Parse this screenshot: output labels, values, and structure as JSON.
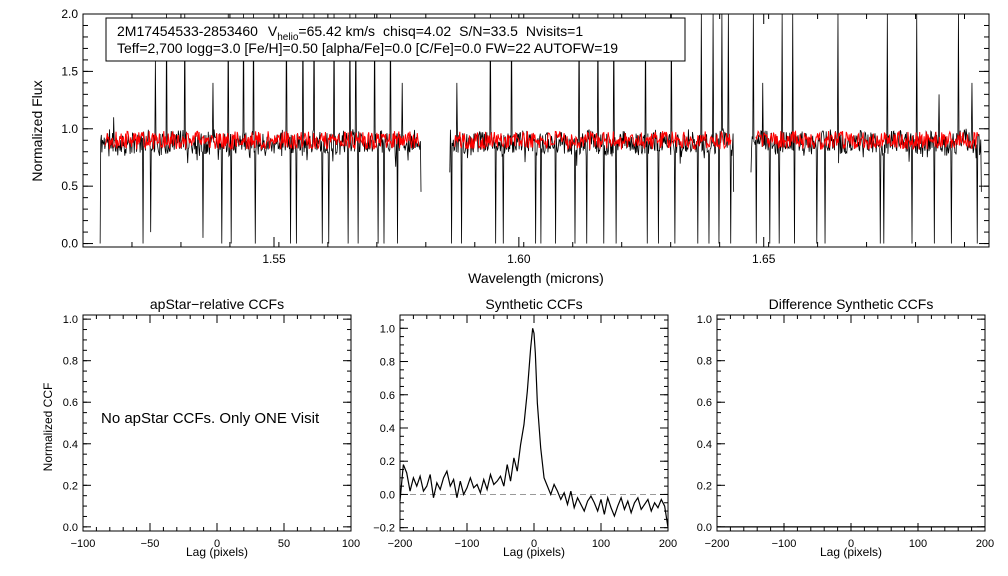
{
  "chart_data": [
    {
      "type": "line",
      "id": "spectrum",
      "star_id": "2M17454533-2853460",
      "vhelio_label": "V",
      "vhelio_sub": "helio",
      "vhelio_value": "=65.42 km/s",
      "chisq": "chisq=4.02",
      "snr": "S/N=33.5",
      "nvisits": "Nvisits=1",
      "params_line": "Teff=2,700 logg=3.0 [Fe/H]=0.50 [alpha/Fe]=0.0 [C/Fe]=0.0 FW=22 AUTOFW=19",
      "xlabel": "Wavelength (microns)",
      "ylabel": "Normalized Flux",
      "xlim": [
        1.511,
        1.696
      ],
      "ylim": [
        -0.03,
        2.0
      ],
      "xticks": [
        1.55,
        1.6,
        1.65
      ],
      "xtick_labels": [
        "1.55",
        "1.60",
        "1.65"
      ],
      "yticks": [
        0.0,
        0.5,
        1.0,
        1.5,
        2.0
      ],
      "ytick_labels": [
        "0.0",
        "0.5",
        "1.0",
        "1.5",
        "2.0"
      ],
      "chips": [
        [
          1.5145,
          1.5801
        ],
        [
          1.5859,
          1.6439
        ],
        [
          1.6474,
          1.6945
        ]
      ],
      "continuum_level": 0.88,
      "noise_amplitude": 0.1,
      "series": [
        {
          "name": "observed",
          "color": "#000000"
        },
        {
          "name": "synthetic model",
          "color": "#ff0000"
        }
      ],
      "spikes": [
        {
          "x": 1.5172,
          "y": 1.1
        },
        {
          "x": 1.5258,
          "y": 1.6
        },
        {
          "x": 1.5281,
          "y": 2.0
        },
        {
          "x": 1.5318,
          "y": 2.0
        },
        {
          "x": 1.5375,
          "y": 1.4
        },
        {
          "x": 1.5407,
          "y": 2.0
        },
        {
          "x": 1.5438,
          "y": 2.0
        },
        {
          "x": 1.5458,
          "y": 2.0
        },
        {
          "x": 1.5525,
          "y": 2.0
        },
        {
          "x": 1.5559,
          "y": 2.0
        },
        {
          "x": 1.5582,
          "y": 2.0
        },
        {
          "x": 1.5622,
          "y": 2.0
        },
        {
          "x": 1.5655,
          "y": 2.0
        },
        {
          "x": 1.5667,
          "y": 2.0
        },
        {
          "x": 1.5705,
          "y": 2.0
        },
        {
          "x": 1.5738,
          "y": 2.0
        },
        {
          "x": 1.5762,
          "y": 1.4
        },
        {
          "x": 1.5873,
          "y": 1.4
        },
        {
          "x": 1.5942,
          "y": 2.0
        },
        {
          "x": 1.5985,
          "y": 2.0
        },
        {
          "x": 1.6123,
          "y": 2.0
        },
        {
          "x": 1.6161,
          "y": 2.0
        },
        {
          "x": 1.6194,
          "y": 2.0
        },
        {
          "x": 1.6258,
          "y": 2.0
        },
        {
          "x": 1.6311,
          "y": 2.0
        },
        {
          "x": 1.6372,
          "y": 2.0
        },
        {
          "x": 1.6396,
          "y": 2.0
        },
        {
          "x": 1.6415,
          "y": 2.0
        },
        {
          "x": 1.6428,
          "y": 2.0
        },
        {
          "x": 1.6479,
          "y": 2.0
        },
        {
          "x": 1.6498,
          "y": 1.4
        },
        {
          "x": 1.6538,
          "y": 2.0
        },
        {
          "x": 1.6559,
          "y": 2.0
        },
        {
          "x": 1.6652,
          "y": 2.0
        },
        {
          "x": 1.6752,
          "y": 2.0
        },
        {
          "x": 1.6812,
          "y": 2.0
        },
        {
          "x": 1.6858,
          "y": 1.3
        },
        {
          "x": 1.6898,
          "y": 2.0
        },
        {
          "x": 1.6925,
          "y": 1.4
        }
      ],
      "dips": [
        {
          "x": 1.5145,
          "y": 0.0
        },
        {
          "x": 1.5233,
          "y": 0.0
        },
        {
          "x": 1.5248,
          "y": 0.1
        },
        {
          "x": 1.5355,
          "y": 0.05
        },
        {
          "x": 1.5393,
          "y": 0.0
        },
        {
          "x": 1.5412,
          "y": 0.0
        },
        {
          "x": 1.5462,
          "y": 0.0
        },
        {
          "x": 1.5534,
          "y": 0.0
        },
        {
          "x": 1.5546,
          "y": 0.0
        },
        {
          "x": 1.5598,
          "y": 0.0
        },
        {
          "x": 1.5612,
          "y": 0.0
        },
        {
          "x": 1.5651,
          "y": 0.0
        },
        {
          "x": 1.5672,
          "y": 0.0
        },
        {
          "x": 1.5712,
          "y": 0.0
        },
        {
          "x": 1.5724,
          "y": 0.0
        },
        {
          "x": 1.5752,
          "y": 0.0
        },
        {
          "x": 1.5862,
          "y": 0.0
        },
        {
          "x": 1.5883,
          "y": 0.0
        },
        {
          "x": 1.5953,
          "y": 0.0
        },
        {
          "x": 1.5968,
          "y": 0.0
        },
        {
          "x": 1.6034,
          "y": 0.0
        },
        {
          "x": 1.6045,
          "y": 0.0
        },
        {
          "x": 1.6075,
          "y": 0.0
        },
        {
          "x": 1.6114,
          "y": 0.0
        },
        {
          "x": 1.6138,
          "y": 0.0
        },
        {
          "x": 1.6173,
          "y": 0.0
        },
        {
          "x": 1.6198,
          "y": 0.0
        },
        {
          "x": 1.6262,
          "y": 0.0
        },
        {
          "x": 1.6285,
          "y": 0.0
        },
        {
          "x": 1.6318,
          "y": 0.0
        },
        {
          "x": 1.6365,
          "y": 0.0
        },
        {
          "x": 1.6388,
          "y": 0.0
        },
        {
          "x": 1.6408,
          "y": 0.0
        },
        {
          "x": 1.6432,
          "y": 0.0
        },
        {
          "x": 1.6485,
          "y": 0.0
        },
        {
          "x": 1.6512,
          "y": 0.0
        },
        {
          "x": 1.6531,
          "y": 0.0
        },
        {
          "x": 1.6563,
          "y": 0.0
        },
        {
          "x": 1.6608,
          "y": 0.0
        },
        {
          "x": 1.6625,
          "y": 0.0
        },
        {
          "x": 1.6738,
          "y": 0.0
        },
        {
          "x": 1.6745,
          "y": 0.0
        },
        {
          "x": 1.6803,
          "y": 0.0
        },
        {
          "x": 1.6848,
          "y": 0.0
        },
        {
          "x": 1.6883,
          "y": 0.0
        },
        {
          "x": 1.6936,
          "y": 0.0
        }
      ]
    },
    {
      "type": "line",
      "id": "apstar_ccf",
      "title": "apStar−relative CCFs",
      "xlabel": "Lag (pixels)",
      "ylabel": "Normalized CCF",
      "xlim": [
        -100,
        100
      ],
      "ylim": [
        -0.02,
        1.02
      ],
      "xticks": [
        -100,
        -50,
        0,
        50,
        100
      ],
      "xtick_labels": [
        "−100",
        "−50",
        "0",
        "50",
        "100"
      ],
      "yticks": [
        0.0,
        0.2,
        0.4,
        0.6,
        0.8,
        1.0
      ],
      "ytick_labels": [
        "0.0",
        "0.2",
        "0.4",
        "0.6",
        "0.8",
        "1.0"
      ],
      "annotation": "No apStar CCFs.  Only ONE Visit",
      "series": []
    },
    {
      "type": "line",
      "id": "synthetic_ccf",
      "title": "Synthetic CCFs",
      "xlabel": "Lag (pixels)",
      "xlim": [
        -200,
        200
      ],
      "ylim": [
        -0.22,
        1.08
      ],
      "xticks": [
        -200,
        -100,
        0,
        100,
        200
      ],
      "xtick_labels": [
        "−200",
        "−100",
        "0",
        "100",
        "200"
      ],
      "yticks": [
        -0.2,
        0.0,
        0.2,
        0.4,
        0.6,
        0.8,
        1.0
      ],
      "ytick_labels": [
        "−0.2",
        "0.0",
        "0.2",
        "0.4",
        "0.6",
        "0.8",
        "1.0"
      ],
      "zero_line": 0.0,
      "series": [
        {
          "name": "ccf",
          "x": [
            -200,
            -195,
            -190,
            -185,
            -180,
            -175,
            -170,
            -165,
            -160,
            -155,
            -150,
            -145,
            -140,
            -135,
            -130,
            -125,
            -120,
            -115,
            -110,
            -105,
            -100,
            -95,
            -90,
            -85,
            -80,
            -75,
            -70,
            -65,
            -60,
            -55,
            -50,
            -45,
            -40,
            -35,
            -30,
            -25,
            -20,
            -15,
            -10,
            -5,
            -2,
            0,
            2,
            5,
            10,
            15,
            20,
            25,
            30,
            35,
            40,
            45,
            50,
            55,
            60,
            65,
            70,
            75,
            80,
            85,
            90,
            95,
            100,
            105,
            110,
            115,
            120,
            125,
            130,
            135,
            140,
            145,
            150,
            155,
            160,
            165,
            170,
            175,
            180,
            185,
            190,
            195,
            200
          ],
          "y": [
            -0.04,
            0.18,
            0.13,
            0.02,
            0.1,
            0.05,
            0.11,
            0.02,
            0.05,
            0.12,
            -0.02,
            0.07,
            0.03,
            0.1,
            0.14,
            0.05,
            0.09,
            -0.02,
            0.08,
            0.0,
            0.04,
            0.1,
            0.04,
            0.06,
            0.01,
            0.09,
            0.03,
            0.12,
            0.06,
            0.08,
            0.11,
            0.05,
            0.18,
            0.08,
            0.22,
            0.14,
            0.3,
            0.42,
            0.62,
            0.88,
            1.0,
            0.97,
            0.85,
            0.55,
            0.28,
            0.1,
            0.05,
            0.0,
            0.06,
            0.02,
            -0.03,
            0.01,
            -0.06,
            0.02,
            -0.08,
            -0.02,
            -0.06,
            -0.1,
            -0.04,
            -0.01,
            -0.05,
            -0.1,
            -0.03,
            -0.12,
            -0.02,
            -0.08,
            -0.13,
            -0.07,
            -0.02,
            -0.09,
            -0.04,
            -0.11,
            -0.05,
            -0.02,
            -0.09,
            -0.06,
            -0.03,
            -0.1,
            -0.05,
            -0.08,
            -0.03,
            -0.07,
            -0.2
          ],
          "color": "#000000"
        }
      ]
    },
    {
      "type": "line",
      "id": "difference_ccf",
      "title": "Difference Synthetic CCFs",
      "xlabel": "Lag (pixels)",
      "xlim": [
        -200,
        200
      ],
      "ylim": [
        -0.02,
        1.02
      ],
      "xticks": [
        -200,
        -100,
        0,
        100,
        200
      ],
      "xtick_labels": [
        "−200",
        "−100",
        "0",
        "100",
        "200"
      ],
      "yticks": [
        0.0,
        0.2,
        0.4,
        0.6,
        0.8,
        1.0
      ],
      "ytick_labels": [
        "0.0",
        "0.2",
        "0.4",
        "0.6",
        "0.8",
        "1.0"
      ],
      "series": [
        {
          "name": "difference",
          "x": [
            -200,
            200
          ],
          "y": [
            0.0,
            0.0
          ],
          "color": "#000000"
        }
      ]
    }
  ]
}
